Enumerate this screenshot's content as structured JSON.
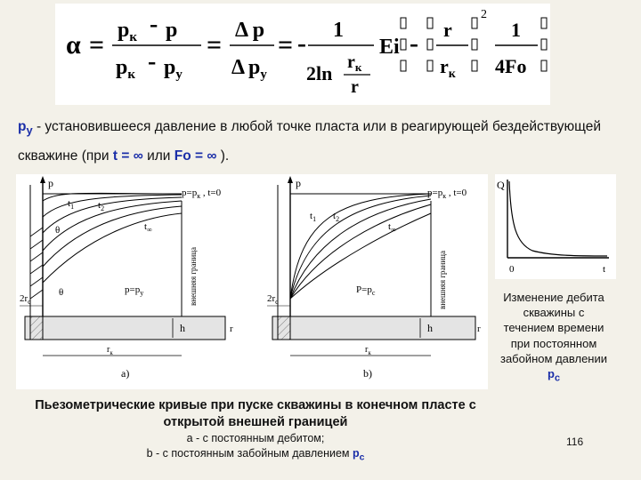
{
  "formula": {
    "alpha": "α",
    "eq": "=",
    "minus": "-",
    "pk": "p",
    "k": "к",
    "p": "p",
    "y": "у",
    "delta_p": "Δ p",
    "delta": "Δ",
    "one": "1",
    "two_ln": "2ln",
    "rk": "r",
    "r": "r",
    "ei": "Ei",
    "sup2": "2",
    "four_fo": "4Fo"
  },
  "description": {
    "symbol": "p",
    "symbol_sub": "у",
    "text1": " - установившееся давление в любой точке пласта или в реагирующей бездействующей скважине (при ",
    "t_sym": "t = ∞",
    "text2": "  или ",
    "fo_sym": "Fo = ∞",
    "text3": " )."
  },
  "figure_a": {
    "p_axis": "p",
    "top_label": "p=p",
    "top_label_sub": "к",
    "top_label_end": " , t=0",
    "t1": "t",
    "t1_sub": "1",
    "t2": "t",
    "t2_sub": "2",
    "tinf": "t",
    "tinf_sub": "∞",
    "theta1": "θ",
    "theta2": "θ",
    "p_py": "p=p",
    "p_py_sub": "у",
    "boundary": "внешняя граница",
    "two_rc": "2r",
    "two_rc_sub": "с",
    "h": "h",
    "r": "r",
    "rk": "r",
    "rk_sub": "к",
    "panel": "a)"
  },
  "figure_b": {
    "p_axis": "p",
    "top_label": "p=p",
    "top_label_sub": "к",
    "top_label_end": " , t=0",
    "t1": "t",
    "t1_sub": "1",
    "t2": "t",
    "t2_sub": "2",
    "tinf": "t",
    "tinf_sub": "∞",
    "p_pc": "P=p",
    "p_pc_sub": "с",
    "boundary": "внешняя граница",
    "two_rc": "2r",
    "two_rc_sub": "с",
    "h": "h",
    "r": "r",
    "rk": "r",
    "rk_sub": "к",
    "panel": "b)"
  },
  "q_chart": {
    "ylabel": "Q",
    "origin": "0",
    "xlabel": "t"
  },
  "caption": {
    "title": "Пьезометрические кривые при пуске скважины в конечном пласте с открытой внешней границей",
    "line_a": "a - с постоянным дебитом;",
    "line_b": "b - с постоянным забойным давлением ",
    "line_b_sym": "p",
    "line_b_sub": "с"
  },
  "q_caption": {
    "text": "Изменение дебита скважины с течением времени при постоянном забойном давлении ",
    "sym": "p",
    "sub": "с"
  },
  "page_number": "116"
}
